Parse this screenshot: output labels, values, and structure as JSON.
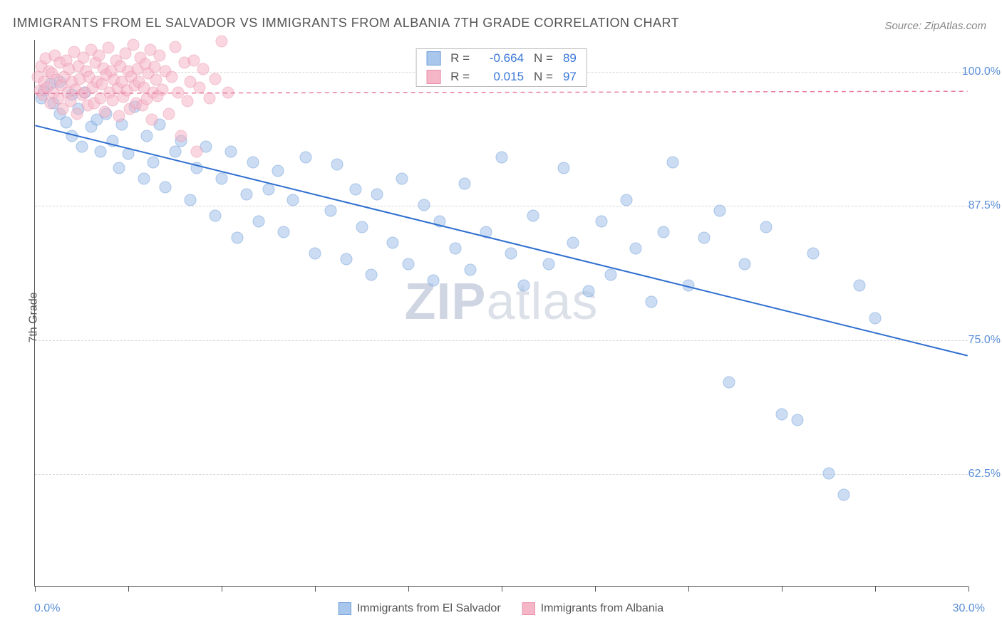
{
  "title": "IMMIGRANTS FROM EL SALVADOR VS IMMIGRANTS FROM ALBANIA 7TH GRADE CORRELATION CHART",
  "source": "Source: ZipAtlas.com",
  "ylabel": "7th Grade",
  "watermark_a": "ZIP",
  "watermark_b": "atlas",
  "chart": {
    "type": "scatter",
    "background_color": "#ffffff",
    "grid_color": "#d8d8d8",
    "axis_color": "#555555",
    "xlim": [
      0.0,
      30.0
    ],
    "ylim": [
      52.0,
      103.0
    ],
    "x_min_label": "0.0%",
    "x_max_label": "30.0%",
    "xtick_positions": [
      0,
      3,
      6,
      9,
      12,
      15,
      18,
      21,
      24,
      27,
      30
    ],
    "y_gridlines": [
      {
        "value": 100.0,
        "label": "100.0%"
      },
      {
        "value": 87.5,
        "label": "87.5%"
      },
      {
        "value": 75.0,
        "label": "75.0%"
      },
      {
        "value": 62.5,
        "label": "62.5%"
      }
    ],
    "series": [
      {
        "id": "el_salvador",
        "name": "Immigrants from El Salvador",
        "fill_color": "#a9c6ec",
        "stroke_color": "#6f9fda",
        "line_color": "#2f6fd0",
        "line_dash": "none",
        "line_width": 2,
        "marker_radius": 8.5,
        "marker_opacity": 0.6,
        "R": "-0.664",
        "N": "89",
        "trend": {
          "x1": 0.0,
          "y1": 95.0,
          "x2": 30.0,
          "y2": 73.5
        },
        "points": [
          [
            0.2,
            97.5
          ],
          [
            0.3,
            98.2
          ],
          [
            0.5,
            98.8
          ],
          [
            0.6,
            97.0
          ],
          [
            0.8,
            96.0
          ],
          [
            0.8,
            99.0
          ],
          [
            1.0,
            95.2
          ],
          [
            1.2,
            97.8
          ],
          [
            1.2,
            94.0
          ],
          [
            1.4,
            96.5
          ],
          [
            1.5,
            93.0
          ],
          [
            1.6,
            98.0
          ],
          [
            1.8,
            94.8
          ],
          [
            2.0,
            95.5
          ],
          [
            2.1,
            92.5
          ],
          [
            2.3,
            96.0
          ],
          [
            2.5,
            93.5
          ],
          [
            2.7,
            91.0
          ],
          [
            2.8,
            95.0
          ],
          [
            3.0,
            92.3
          ],
          [
            3.2,
            96.7
          ],
          [
            3.5,
            90.0
          ],
          [
            3.6,
            94.0
          ],
          [
            3.8,
            91.5
          ],
          [
            4.0,
            95.0
          ],
          [
            4.2,
            89.2
          ],
          [
            4.5,
            92.5
          ],
          [
            4.7,
            93.5
          ],
          [
            5.0,
            88.0
          ],
          [
            5.2,
            91.0
          ],
          [
            5.5,
            93.0
          ],
          [
            5.8,
            86.5
          ],
          [
            6.0,
            90.0
          ],
          [
            6.3,
            92.5
          ],
          [
            6.5,
            84.5
          ],
          [
            6.8,
            88.5
          ],
          [
            7.0,
            91.5
          ],
          [
            7.2,
            86.0
          ],
          [
            7.5,
            89.0
          ],
          [
            7.8,
            90.7
          ],
          [
            8.0,
            85.0
          ],
          [
            8.3,
            88.0
          ],
          [
            8.7,
            92.0
          ],
          [
            9.0,
            83.0
          ],
          [
            9.5,
            87.0
          ],
          [
            9.7,
            91.3
          ],
          [
            10.0,
            82.5
          ],
          [
            10.3,
            89.0
          ],
          [
            10.5,
            85.5
          ],
          [
            10.8,
            81.0
          ],
          [
            11.0,
            88.5
          ],
          [
            11.5,
            84.0
          ],
          [
            11.8,
            90.0
          ],
          [
            12.0,
            82.0
          ],
          [
            12.5,
            87.5
          ],
          [
            12.8,
            80.5
          ],
          [
            13.0,
            86.0
          ],
          [
            13.5,
            83.5
          ],
          [
            13.8,
            89.5
          ],
          [
            14.0,
            81.5
          ],
          [
            14.5,
            85.0
          ],
          [
            15.0,
            92.0
          ],
          [
            15.3,
            83.0
          ],
          [
            15.7,
            80.0
          ],
          [
            16.0,
            86.5
          ],
          [
            16.5,
            82.0
          ],
          [
            17.0,
            91.0
          ],
          [
            17.3,
            84.0
          ],
          [
            17.8,
            79.5
          ],
          [
            18.2,
            86.0
          ],
          [
            18.5,
            81.0
          ],
          [
            19.0,
            88.0
          ],
          [
            19.3,
            83.5
          ],
          [
            19.8,
            78.5
          ],
          [
            20.2,
            85.0
          ],
          [
            20.5,
            91.5
          ],
          [
            21.0,
            80.0
          ],
          [
            21.5,
            84.5
          ],
          [
            22.0,
            87.0
          ],
          [
            22.3,
            71.0
          ],
          [
            22.8,
            82.0
          ],
          [
            23.5,
            85.5
          ],
          [
            24.0,
            68.0
          ],
          [
            24.5,
            67.5
          ],
          [
            25.0,
            83.0
          ],
          [
            25.5,
            62.5
          ],
          [
            26.0,
            60.5
          ],
          [
            26.5,
            80.0
          ],
          [
            27.0,
            77.0
          ]
        ]
      },
      {
        "id": "albania",
        "name": "Immigrants from Albania",
        "fill_color": "#f5b6c8",
        "stroke_color": "#e990aa",
        "line_color": "#e87aa0",
        "line_dash": "6,5",
        "line_width": 1.5,
        "marker_radius": 8.5,
        "marker_opacity": 0.55,
        "R": "0.015",
        "N": "97",
        "trend": {
          "x1": 0.0,
          "y1": 98.0,
          "x2": 30.0,
          "y2": 98.2
        },
        "points": [
          [
            0.1,
            99.5
          ],
          [
            0.15,
            98.2
          ],
          [
            0.2,
            100.5
          ],
          [
            0.25,
            97.8
          ],
          [
            0.3,
            99.0
          ],
          [
            0.35,
            101.2
          ],
          [
            0.4,
            98.5
          ],
          [
            0.45,
            100.0
          ],
          [
            0.5,
            97.0
          ],
          [
            0.55,
            99.8
          ],
          [
            0.6,
            98.0
          ],
          [
            0.65,
            101.5
          ],
          [
            0.7,
            99.2
          ],
          [
            0.75,
            97.5
          ],
          [
            0.8,
            100.8
          ],
          [
            0.85,
            98.7
          ],
          [
            0.9,
            96.5
          ],
          [
            0.95,
            99.5
          ],
          [
            1.0,
            101.0
          ],
          [
            1.05,
            98.0
          ],
          [
            1.1,
            100.2
          ],
          [
            1.15,
            97.2
          ],
          [
            1.2,
            99.0
          ],
          [
            1.25,
            101.8
          ],
          [
            1.3,
            98.3
          ],
          [
            1.35,
            96.0
          ],
          [
            1.4,
            100.5
          ],
          [
            1.45,
            99.3
          ],
          [
            1.5,
            97.8
          ],
          [
            1.55,
            101.3
          ],
          [
            1.6,
            98.0
          ],
          [
            1.65,
            100.0
          ],
          [
            1.7,
            96.8
          ],
          [
            1.75,
            99.5
          ],
          [
            1.8,
            102.0
          ],
          [
            1.85,
            98.5
          ],
          [
            1.9,
            97.0
          ],
          [
            1.95,
            100.8
          ],
          [
            2.0,
            99.0
          ],
          [
            2.05,
            101.5
          ],
          [
            2.1,
            97.5
          ],
          [
            2.15,
            98.8
          ],
          [
            2.2,
            100.3
          ],
          [
            2.25,
            96.2
          ],
          [
            2.3,
            99.7
          ],
          [
            2.35,
            102.2
          ],
          [
            2.4,
            98.0
          ],
          [
            2.45,
            100.0
          ],
          [
            2.5,
            97.3
          ],
          [
            2.55,
            99.2
          ],
          [
            2.6,
            101.0
          ],
          [
            2.65,
            98.4
          ],
          [
            2.7,
            95.8
          ],
          [
            2.75,
            100.5
          ],
          [
            2.8,
            99.0
          ],
          [
            2.85,
            97.6
          ],
          [
            2.9,
            101.7
          ],
          [
            2.95,
            98.2
          ],
          [
            3.0,
            100.0
          ],
          [
            3.05,
            96.5
          ],
          [
            3.1,
            99.5
          ],
          [
            3.15,
            102.5
          ],
          [
            3.2,
            98.7
          ],
          [
            3.25,
            97.0
          ],
          [
            3.3,
            100.2
          ],
          [
            3.35,
            99.0
          ],
          [
            3.4,
            101.3
          ],
          [
            3.45,
            96.8
          ],
          [
            3.5,
            98.5
          ],
          [
            3.55,
            100.7
          ],
          [
            3.6,
            97.4
          ],
          [
            3.65,
            99.8
          ],
          [
            3.7,
            102.0
          ],
          [
            3.75,
            95.5
          ],
          [
            3.8,
            98.0
          ],
          [
            3.85,
            100.4
          ],
          [
            3.9,
            99.2
          ],
          [
            3.95,
            97.7
          ],
          [
            4.0,
            101.5
          ],
          [
            4.1,
            98.3
          ],
          [
            4.2,
            100.0
          ],
          [
            4.3,
            96.0
          ],
          [
            4.4,
            99.5
          ],
          [
            4.5,
            102.3
          ],
          [
            4.6,
            98.0
          ],
          [
            4.7,
            94.0
          ],
          [
            4.8,
            100.8
          ],
          [
            4.9,
            97.2
          ],
          [
            5.0,
            99.0
          ],
          [
            5.1,
            101.0
          ],
          [
            5.2,
            92.5
          ],
          [
            5.3,
            98.5
          ],
          [
            5.4,
            100.2
          ],
          [
            5.6,
            97.5
          ],
          [
            5.8,
            99.3
          ],
          [
            6.0,
            102.8
          ],
          [
            6.2,
            98.0
          ]
        ]
      }
    ]
  },
  "bottom_legend": [
    {
      "label": "Immigrants from El Salvador",
      "fill": "#a9c6ec",
      "stroke": "#6f9fda"
    },
    {
      "label": "Immigrants from Albania",
      "fill": "#f5b6c8",
      "stroke": "#e990aa"
    }
  ]
}
